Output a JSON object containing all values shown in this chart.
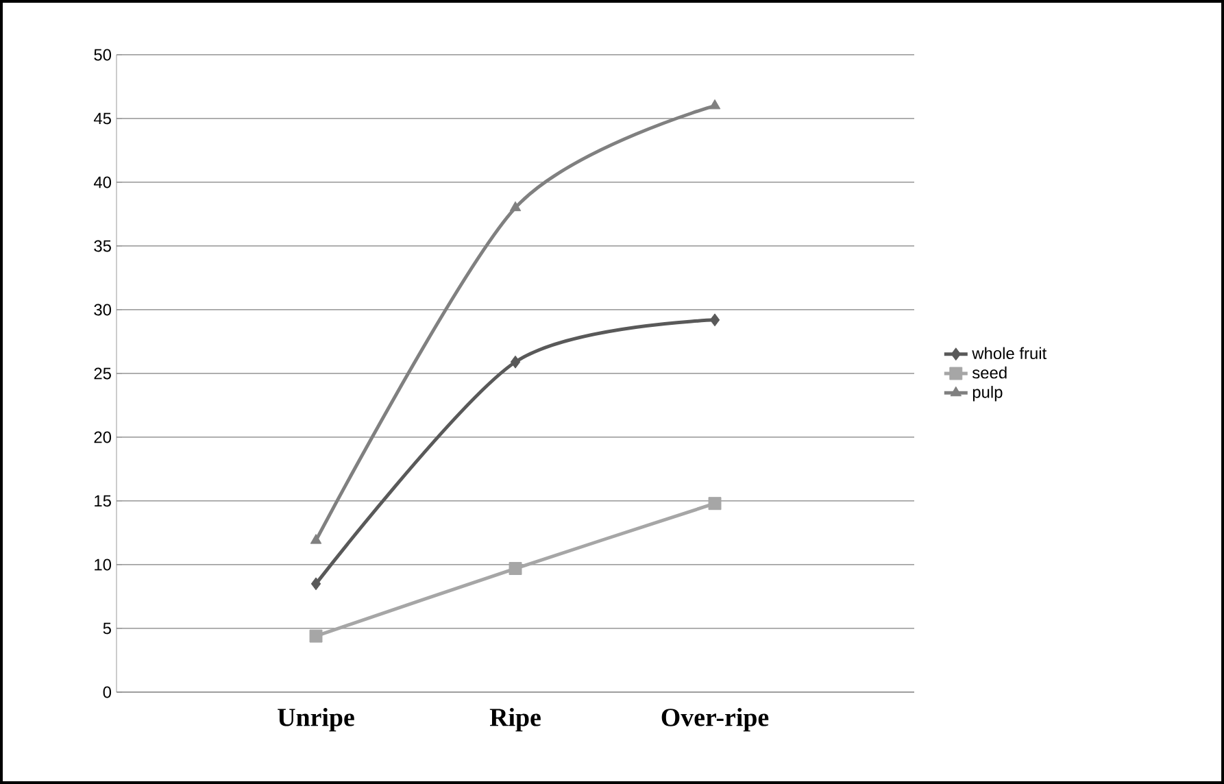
{
  "chart_data": {
    "type": "line",
    "categories": [
      "Unripe",
      "Ripe",
      "Over-ripe"
    ],
    "series": [
      {
        "name": "whole fruit",
        "color": "#595959",
        "marker": "diamond",
        "values": [
          8.5,
          25.9,
          29.2
        ]
      },
      {
        "name": "seed",
        "color": "#a6a6a6",
        "marker": "square",
        "values": [
          4.4,
          9.7,
          14.8
        ]
      },
      {
        "name": "pulp",
        "color": "#808080",
        "marker": "triangle",
        "values": [
          11.9,
          38,
          46
        ]
      }
    ],
    "ylim": [
      0,
      50
    ],
    "yticks": [
      0,
      5,
      10,
      15,
      20,
      25,
      30,
      35,
      40,
      45,
      50
    ],
    "grid": "y",
    "legend": "right"
  }
}
